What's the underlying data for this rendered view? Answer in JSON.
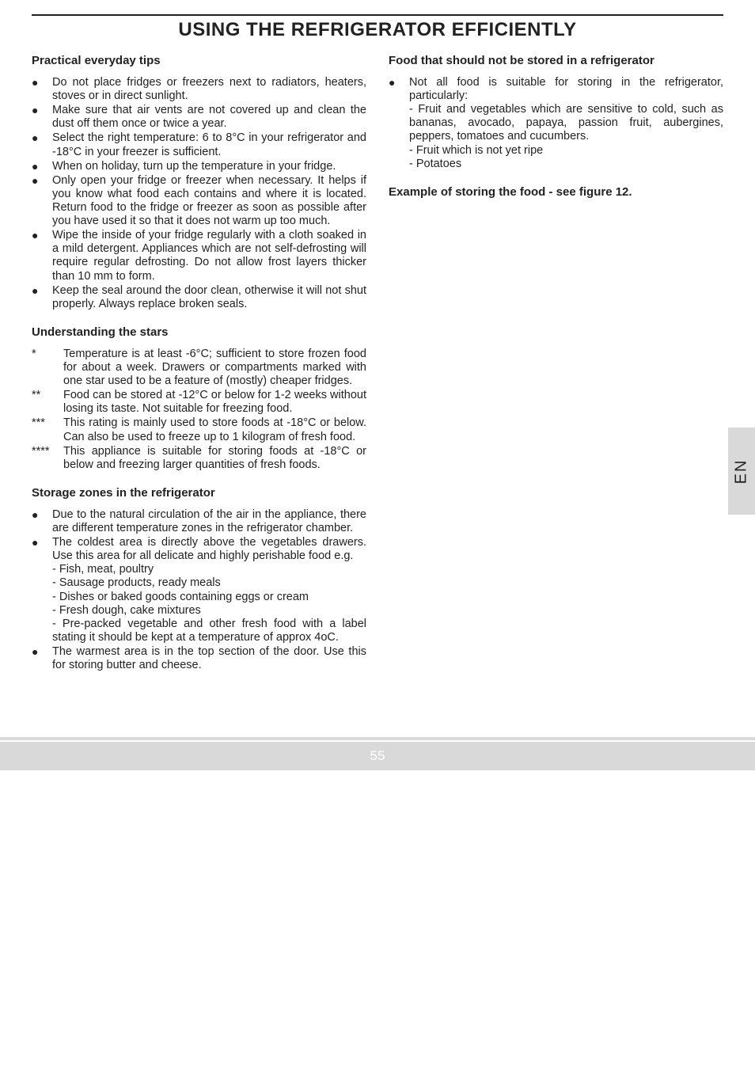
{
  "page": {
    "title": "USING THE REFRIGERATOR EFFICIENTLY",
    "side_tab": "EN",
    "footer_number": "55"
  },
  "left": {
    "sec1_heading": "Practical everyday tips",
    "sec1_items": [
      "Do not place fridges or freezers next to radiators, heaters, stoves or in direct sunlight.",
      "Make sure that air vents are not covered up and clean the dust off them once or twice a year.",
      "Select the right temperature: 6 to 8°C in your refrigerator and -18°C in your freezer is sufficient.",
      "When on holiday, turn up the temperature in your fridge.",
      "Only open your fridge or freezer when necessary. It helps if you know what food each contains and where it is located. Return food to the fridge or freezer as soon as possible after you have used it so that it does not warm up too much.",
      "Wipe  the inside of your fridge regularly with a cloth soaked in a mild detergent. Appliances which are not self-defrosting will require regular defrosting. Do not allow frost layers thicker than 10 mm to form.",
      "Keep the seal around the door clean, otherwise it will not shut properly. Always replace broken seals."
    ],
    "sec2_heading": "Understanding the stars",
    "sec2_items": [
      {
        "marker": "*",
        "text": "Temperature is at least -6°C; sufficient to store frozen food for about a week. Drawers or compartments marked with one star used to be a feature of (mostly) cheaper fridges."
      },
      {
        "marker": "**",
        "text": "Food can be stored at -12°C or below for 1-2 weeks without losing its taste. Not suitable for freezing food."
      },
      {
        "marker": "***",
        "text": "This rating is mainly used to store foods at -18°C or below. Can also be used to freeze up to 1 kilogram of fresh food."
      },
      {
        "marker": "****",
        "text": "This appliance is suitable for storing foods at -18°C or below and freezing larger quantities of fresh foods."
      }
    ],
    "sec3_heading": "Storage zones in the refrigerator",
    "sec3_item0": "Due to the natural circulation of the air in the appliance, there are different temperature zones in the refrigerator chamber.",
    "sec3_item1_lead": "The coldest area is directly above the vegetables drawers. Use this area for all delicate and highly perishable food e.g.",
    "sec3_item1_lines": [
      "- Fish, meat, poultry",
      "- Sausage products, ready meals",
      "- Dishes or baked goods containing eggs or cream",
      "- Fresh dough, cake mixtures",
      "- Pre-packed vegetable and other fresh food with a label stating it should be kept at a temperature of approx 4oC."
    ],
    "sec3_item2": "The warmest area is in the top section of the door. Use this for storing butter and cheese."
  },
  "right": {
    "sec1_heading": "Food that should not be stored in a refrigerator",
    "sec1_item0_lead": "Not all food is suitable for storing in the refrigerator, particularly:",
    "sec1_item0_lines": [
      "- Fruit and vegetables which are sensitive to cold, such as bananas, avocado, papaya, passion fruit, aubergines, peppers, tomatoes and cucumbers.",
      "- Fruit which is not yet ripe",
      "- Potatoes"
    ],
    "sec2_heading": "Example of storing the food - see figure 12."
  },
  "style": {
    "colors": {
      "text": "#222222",
      "background": "#ffffff",
      "tab_bg": "#d9d9d9",
      "footer_bg": "#d9d9d9",
      "footer_text": "#ffffff",
      "rule": "#222222"
    },
    "fonts": {
      "title_size_pt": 18,
      "heading_size_pt": 11,
      "body_size_pt": 11,
      "side_tab_size_pt": 15,
      "footer_size_pt": 13
    }
  }
}
